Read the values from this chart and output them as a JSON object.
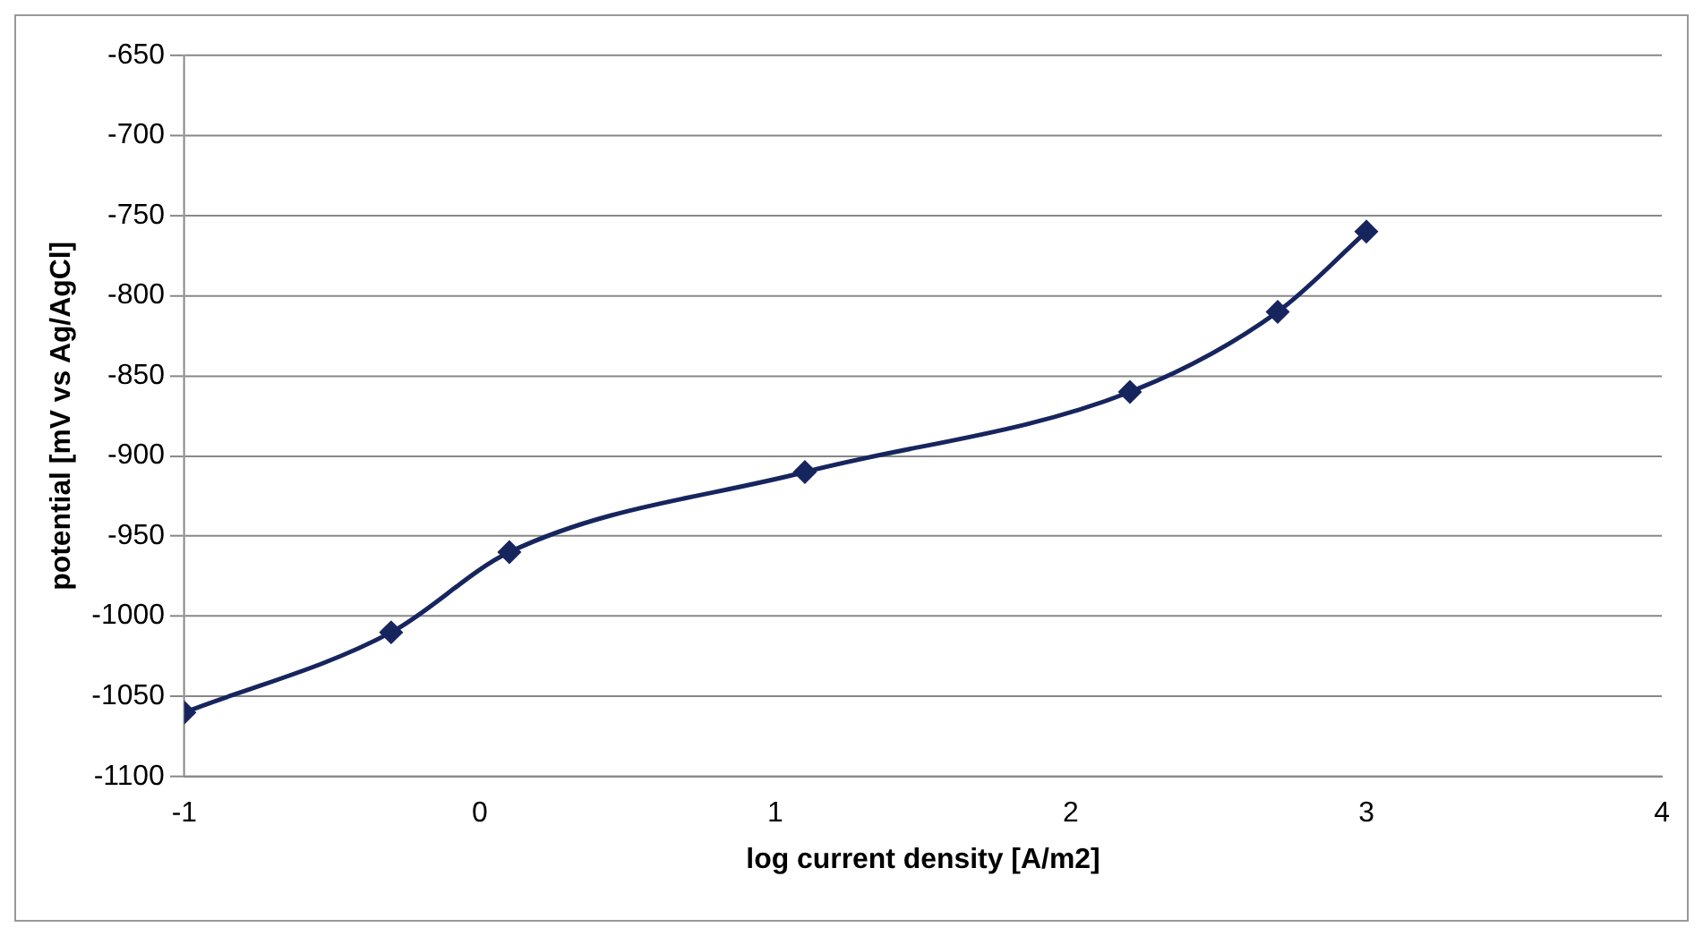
{
  "chart_data": {
    "type": "line",
    "xlabel": "log current density [A/m2]",
    "ylabel": "potential [mV vs Ag/AgCl]",
    "x": [
      -1,
      -0.3,
      0.1,
      1.1,
      2.2,
      2.7,
      3
    ],
    "series": [
      {
        "color": "#17255e",
        "values": [
          -1060,
          -1010,
          -960,
          -910,
          -860,
          -810,
          -760
        ]
      }
    ],
    "xlim": [
      -1,
      4
    ],
    "xticks": [
      -1,
      0,
      1,
      2,
      3,
      4
    ],
    "ylim": [
      -1100,
      -650
    ],
    "yticks": [
      -1100,
      -1050,
      -1000,
      -950,
      -900,
      -850,
      -800,
      -750,
      -700,
      -650
    ],
    "grid": "y",
    "legend": false,
    "marker": "diamond",
    "line_style": "solid"
  }
}
